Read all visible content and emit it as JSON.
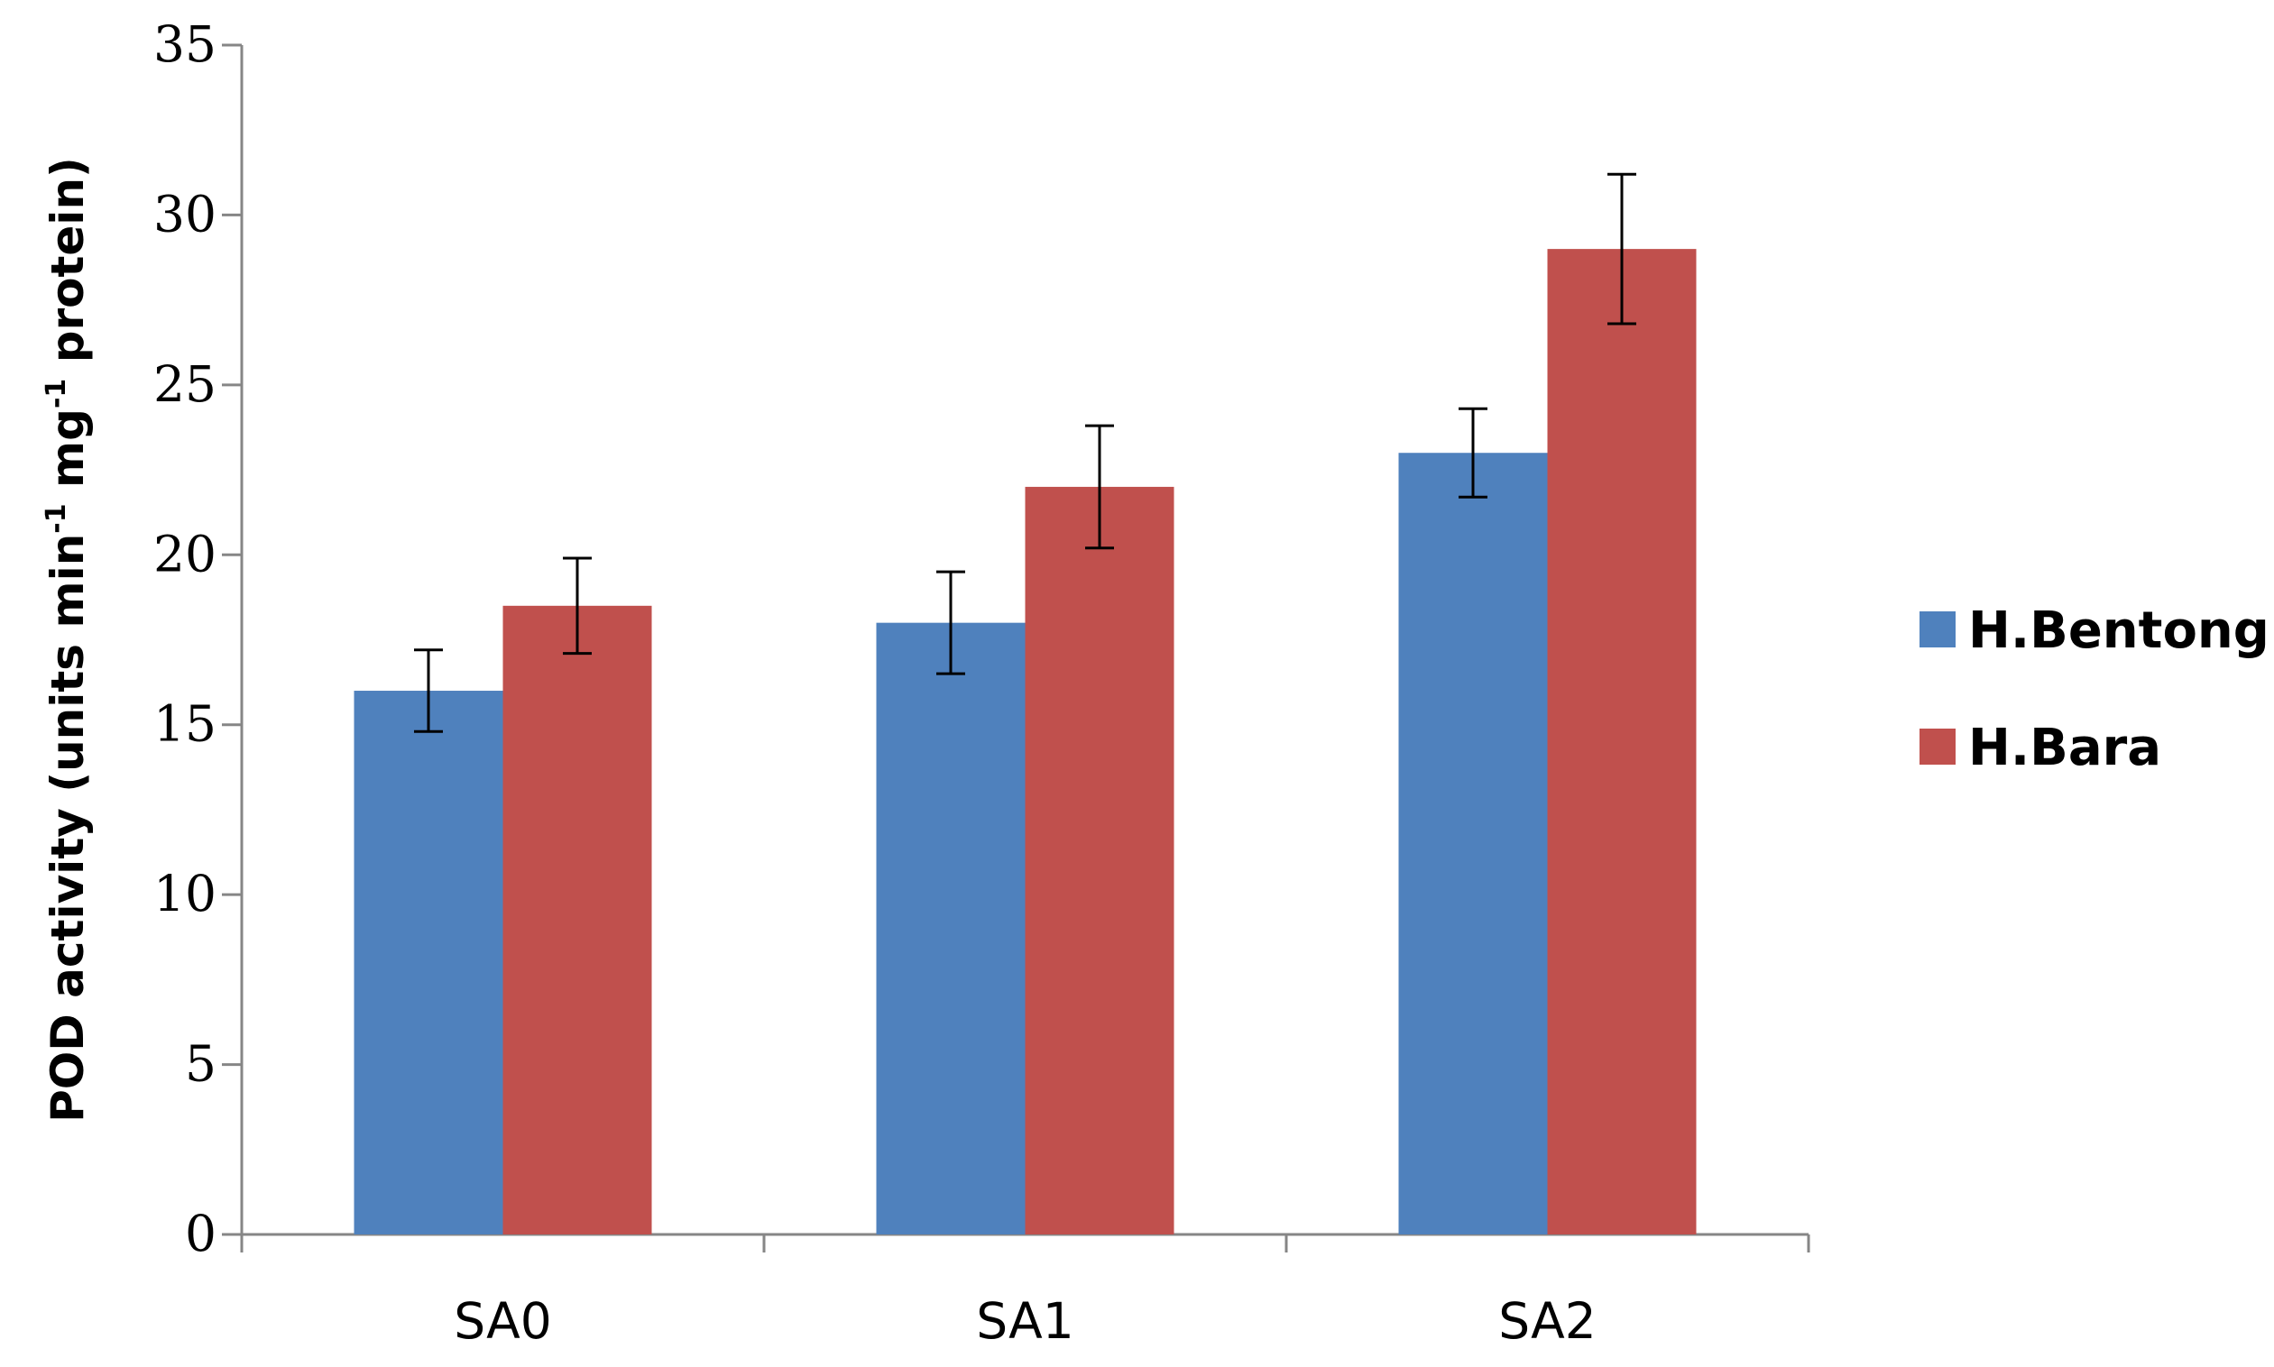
{
  "chart_data": {
    "type": "bar",
    "title": "",
    "xlabel": "",
    "ylabel_main": "POD  activity (units min",
    "ylabel_sup1": "-1",
    "ylabel_mid": " mg",
    "ylabel_sup2": "-1",
    "ylabel_end": " protein)",
    "categories": [
      "SA0",
      "SA1",
      "SA2"
    ],
    "ylim": [
      0,
      35
    ],
    "yticks": [
      0,
      5,
      10,
      15,
      20,
      25,
      30,
      35
    ],
    "ytick_labels": [
      "0",
      "5",
      "10",
      "15",
      "20",
      "25",
      "30",
      "35"
    ],
    "grid": false,
    "legend_position": "right",
    "series": [
      {
        "name": "H.Bentong",
        "color": "#4f81bd",
        "values": [
          16.0,
          18.0,
          23.0
        ],
        "errors": [
          1.2,
          1.5,
          1.3
        ]
      },
      {
        "name": "H.Bara",
        "color": "#c0504d",
        "values": [
          18.5,
          22.0,
          29.0
        ],
        "errors": [
          1.4,
          1.8,
          2.2
        ]
      }
    ]
  }
}
